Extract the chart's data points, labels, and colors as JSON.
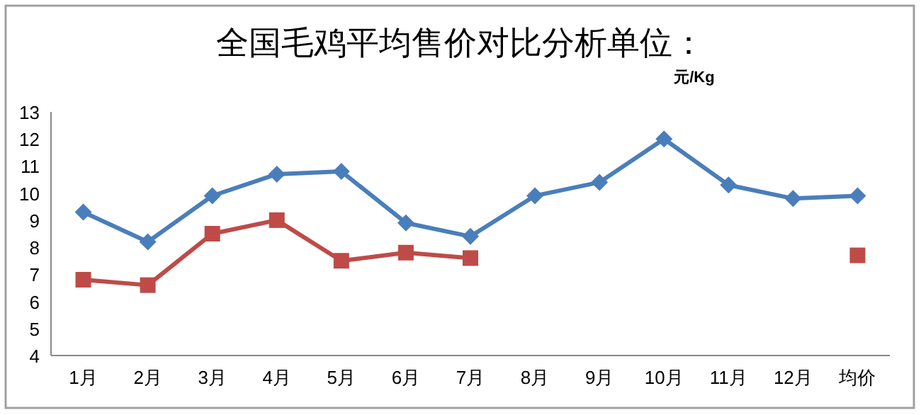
{
  "chart_data": {
    "type": "line",
    "title": "全国毛鸡平均售价对比分析单位：",
    "subtitle": "元/Kg",
    "categories": [
      "1月",
      "2月",
      "3月",
      "4月",
      "5月",
      "6月",
      "7月",
      "8月",
      "9月",
      "10月",
      "11月",
      "12月",
      "均价"
    ],
    "series": [
      {
        "color": "#4a7ebb",
        "marker": "diamond",
        "values": [
          9.3,
          8.2,
          9.9,
          10.7,
          10.8,
          8.9,
          8.4,
          9.9,
          10.4,
          12.0,
          10.3,
          9.8,
          9.9
        ]
      },
      {
        "color": "#be4b48",
        "marker": "square",
        "values": [
          6.8,
          6.6,
          8.5,
          9.0,
          7.5,
          7.8,
          7.6,
          null,
          null,
          null,
          null,
          null,
          7.7
        ]
      }
    ],
    "ylim": [
      4,
      13
    ],
    "yticks": [
      4,
      5,
      6,
      7,
      8,
      9,
      10,
      11,
      12,
      13
    ],
    "grid": false,
    "line_style": "solid"
  }
}
